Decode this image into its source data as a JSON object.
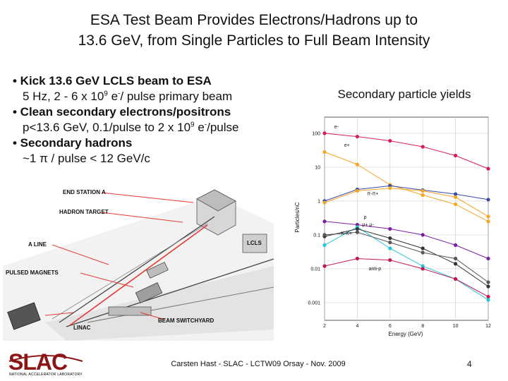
{
  "title": {
    "line1": "ESA Test Beam Provides Electrons/Hadrons up to",
    "line2": "13.6 GeV, from Single Particles to Full Beam Intensity"
  },
  "bullets": {
    "b1": "• Kick 13.6 GeV LCLS beam to ESA",
    "b1_sub_a": "5 Hz, 2 - 6 x 10",
    "b1_sub_exp": "9",
    "b1_sub_b": " e",
    "b1_sub_minus": "-",
    "b1_sub_c": "/ pulse primary beam",
    "b2": "• Clean secondary electrons/positrons",
    "b2_sub_a": "p<13.6 GeV, 0.1/pulse to 2 x 10",
    "b2_sub_exp": "9",
    "b2_sub_b": " e",
    "b2_sub_minus": "-",
    "b2_sub_c": "/pulse",
    "b3": "• Secondary hadrons",
    "b3_sub": "~1 π / pulse < 12 GeV/c"
  },
  "map_labels": {
    "end_station": "END STATION A",
    "hadron_target": "HADRON TARGET",
    "a_line": "A LINE",
    "lcls": "LCLS",
    "pulsed_magnets": "PULSED MAGNETS",
    "linac": "LINAC",
    "beam_switchyard": "BEAM SWITCHYARD"
  },
  "yields_title": "Secondary particle yields",
  "chart_data": {
    "type": "line",
    "title": "",
    "xlabel": "Energy (GeV)",
    "ylabel": "Particles/nC",
    "xlim": [
      2,
      12
    ],
    "ylim": [
      0.0003,
      300
    ],
    "yscale": "log",
    "xticks": [
      2,
      4,
      6,
      8,
      10,
      12
    ],
    "yticks": [
      0.001,
      0.01,
      0.1,
      1,
      10,
      100
    ],
    "ytick_labels": [
      "0.001",
      "0.01",
      "0.1",
      "1",
      "10",
      "100"
    ],
    "grid": true,
    "series": [
      {
        "name": "e-",
        "color": "#d81b60",
        "x": [
          2,
          4,
          6,
          8,
          10,
          12
        ],
        "y": [
          100,
          80,
          60,
          40,
          22,
          9
        ]
      },
      {
        "name": "e+",
        "color": "#f5a623",
        "x": [
          2,
          4,
          6,
          8,
          10,
          12
        ],
        "y": [
          28,
          12,
          3,
          1.5,
          0.8,
          0.25
        ]
      },
      {
        "name": "π-π+",
        "color": "#3949ab",
        "x": [
          2,
          4,
          6,
          8,
          10,
          12
        ],
        "y": [
          1.0,
          2.2,
          2.8,
          2.1,
          1.6,
          1.1
        ]
      },
      {
        "name": "",
        "color": "#f5a623",
        "x": [
          2,
          4,
          6,
          8,
          10,
          12
        ],
        "y": [
          0.9,
          2.0,
          2.4,
          2.0,
          1.3,
          0.35
        ]
      },
      {
        "name": "p",
        "color": "#7b1fa2",
        "x": [
          2,
          4,
          6,
          8,
          10,
          12
        ],
        "y": [
          0.25,
          0.2,
          0.15,
          0.1,
          0.05,
          0.02
        ]
      },
      {
        "name": "K-K+",
        "color": "#26c6da",
        "x": [
          2,
          4,
          6,
          8,
          10,
          12
        ],
        "y": [
          0.05,
          0.17,
          0.04,
          0.012,
          0.005,
          0.0012
        ]
      },
      {
        "name": "",
        "color": "#333333",
        "x": [
          2,
          4,
          6,
          8,
          10,
          12
        ],
        "y": [
          0.09,
          0.15,
          0.08,
          0.04,
          0.014,
          0.003
        ]
      },
      {
        "name": "",
        "color": "#555555",
        "x": [
          2,
          4,
          6,
          8,
          10,
          12
        ],
        "y": [
          0.1,
          0.12,
          0.06,
          0.03,
          0.02,
          0.004
        ]
      },
      {
        "name": "anti-p",
        "color": "#c2185b",
        "x": [
          2,
          4,
          6,
          8,
          10,
          12
        ],
        "y": [
          0.012,
          0.02,
          0.018,
          0.01,
          0.005,
          0.0015
        ]
      }
    ],
    "annotations": [
      "e-",
      "e+",
      "π-π+",
      "p",
      "K-",
      "K+",
      "μ+",
      "μ-",
      "anti-p"
    ]
  },
  "footer": "Carsten Hast - SLAC - LCTW09 Orsay - Nov. 2009",
  "page_number": "4",
  "logo": {
    "text": "SLAC",
    "tagline": "NATIONAL ACCELERATOR LABORATORY",
    "color": "#8c1515"
  }
}
